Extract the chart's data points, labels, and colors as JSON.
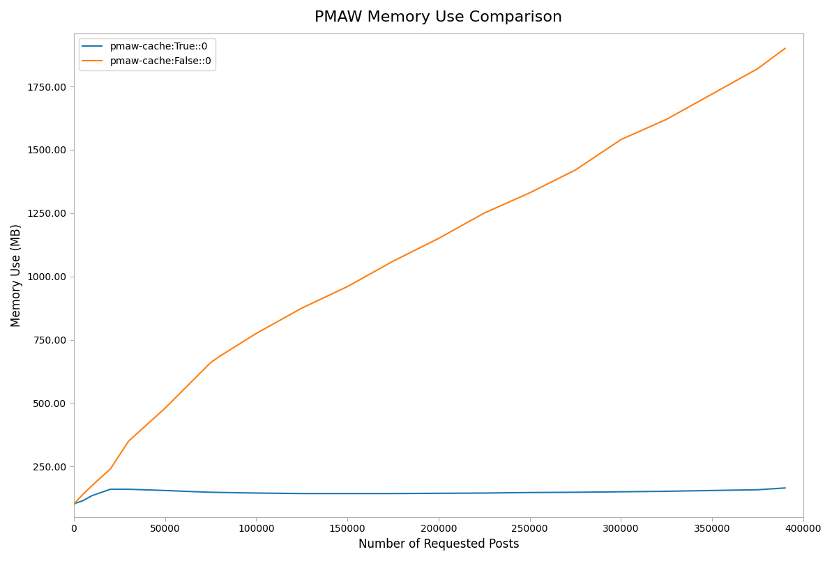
{
  "title": "PMAW Memory Use Comparison",
  "xlabel": "Number of Requested Posts",
  "ylabel": "Memory Use (MB)",
  "line_true_label": "pmaw-cache:True::0",
  "line_false_label": "pmaw-cache:False::0",
  "line_true_color": "#1f77b4",
  "line_false_color": "#ff7f0e",
  "x_true": [
    0,
    1000,
    5000,
    10000,
    20000,
    30000,
    50000,
    75000,
    100000,
    125000,
    150000,
    175000,
    200000,
    225000,
    250000,
    275000,
    300000,
    325000,
    350000,
    375000,
    390000
  ],
  "y_true": [
    100,
    105,
    115,
    135,
    160,
    160,
    155,
    148,
    145,
    143,
    143,
    143,
    144,
    145,
    147,
    148,
    150,
    152,
    155,
    158,
    165
  ],
  "x_false": [
    0,
    1000,
    5000,
    10000,
    20000,
    30000,
    50000,
    75000,
    80000,
    100000,
    125000,
    150000,
    175000,
    200000,
    225000,
    250000,
    275000,
    300000,
    325000,
    350000,
    375000,
    390000
  ],
  "y_false": [
    100,
    110,
    140,
    175,
    240,
    350,
    480,
    660,
    685,
    775,
    875,
    960,
    1060,
    1150,
    1250,
    1330,
    1420,
    1540,
    1620,
    1720,
    1820,
    1900
  ],
  "xlim": [
    0,
    400000
  ],
  "ylim": [
    50,
    1960
  ],
  "xticks": [
    0,
    50000,
    100000,
    150000,
    200000,
    250000,
    300000,
    350000,
    400000
  ],
  "yticks": [
    250.0,
    500.0,
    750.0,
    1000.0,
    1250.0,
    1500.0,
    1750.0
  ],
  "background_color": "#ffffff",
  "figsize": [
    11.93,
    8.05
  ],
  "dpi": 100
}
